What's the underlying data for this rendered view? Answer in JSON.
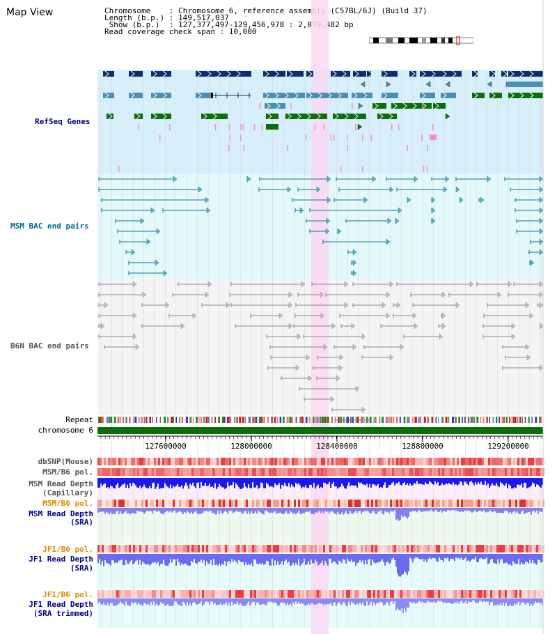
{
  "header": {
    "title": "Map View",
    "lines": [
      "Chromosome    : Chromosome 6, reference assembly (C57BL/6J) (Build 37)",
      "Length (b.p.) : 149,517,037",
      " Show (b.p.)  : 127,377,497-129,456,978 : 2,079,482 bp",
      "Read coverage check span : 10,000"
    ]
  },
  "tracks": {
    "refseq": "RefSeq Genes",
    "msm_bac": "MSM BAC end pairs",
    "b6n_bac": "B6N BAC end pairs",
    "repeat": "Repeat",
    "chromosome": "chromosome 6",
    "dbsnp": "dbSNP(Mouse)",
    "msm_b6_pol_1": "MSM/B6 pol.",
    "msm_depth_cap_1": "MSM Read Depth",
    "msm_depth_cap_2": "(Capillary)",
    "msm_b6_pol_2": "MSM/B6 pol.",
    "msm_depth_sra_1": "MSM Read Depth",
    "msm_depth_sra_2": "(SRA)",
    "jf1_pol_1": "JF1/B6 pol.",
    "jf1_depth_1": "JF1 Read Depth",
    "jf1_depth_2": "(SRA)",
    "jf1_pol_2": "JF1/B6 pol.",
    "jf1_depth_trim_1": "JF1 Read Depth",
    "jf1_depth_trim_2": "(SRA trimmed)"
  },
  "axis": {
    "ticks": [
      "127600000",
      "128000000",
      "128400000",
      "128800000",
      "129200000"
    ]
  },
  "colors": {
    "highlight": "#f9d8f2",
    "refseq_bg": "#d7effa",
    "msm_bg": "#e3f8f8",
    "b6n_bg": "#f4f4f6",
    "navy": "#0a2f6b",
    "steel": "#4a8fb5",
    "green": "#0b6e0b",
    "pink": "#f48fc0",
    "teal_line": "#1a6f8a",
    "gray_line": "#888888",
    "chrom_green": "#0a6e0a",
    "depth_blue": "#1a1aee",
    "depth_light": "#7b7bf0"
  }
}
